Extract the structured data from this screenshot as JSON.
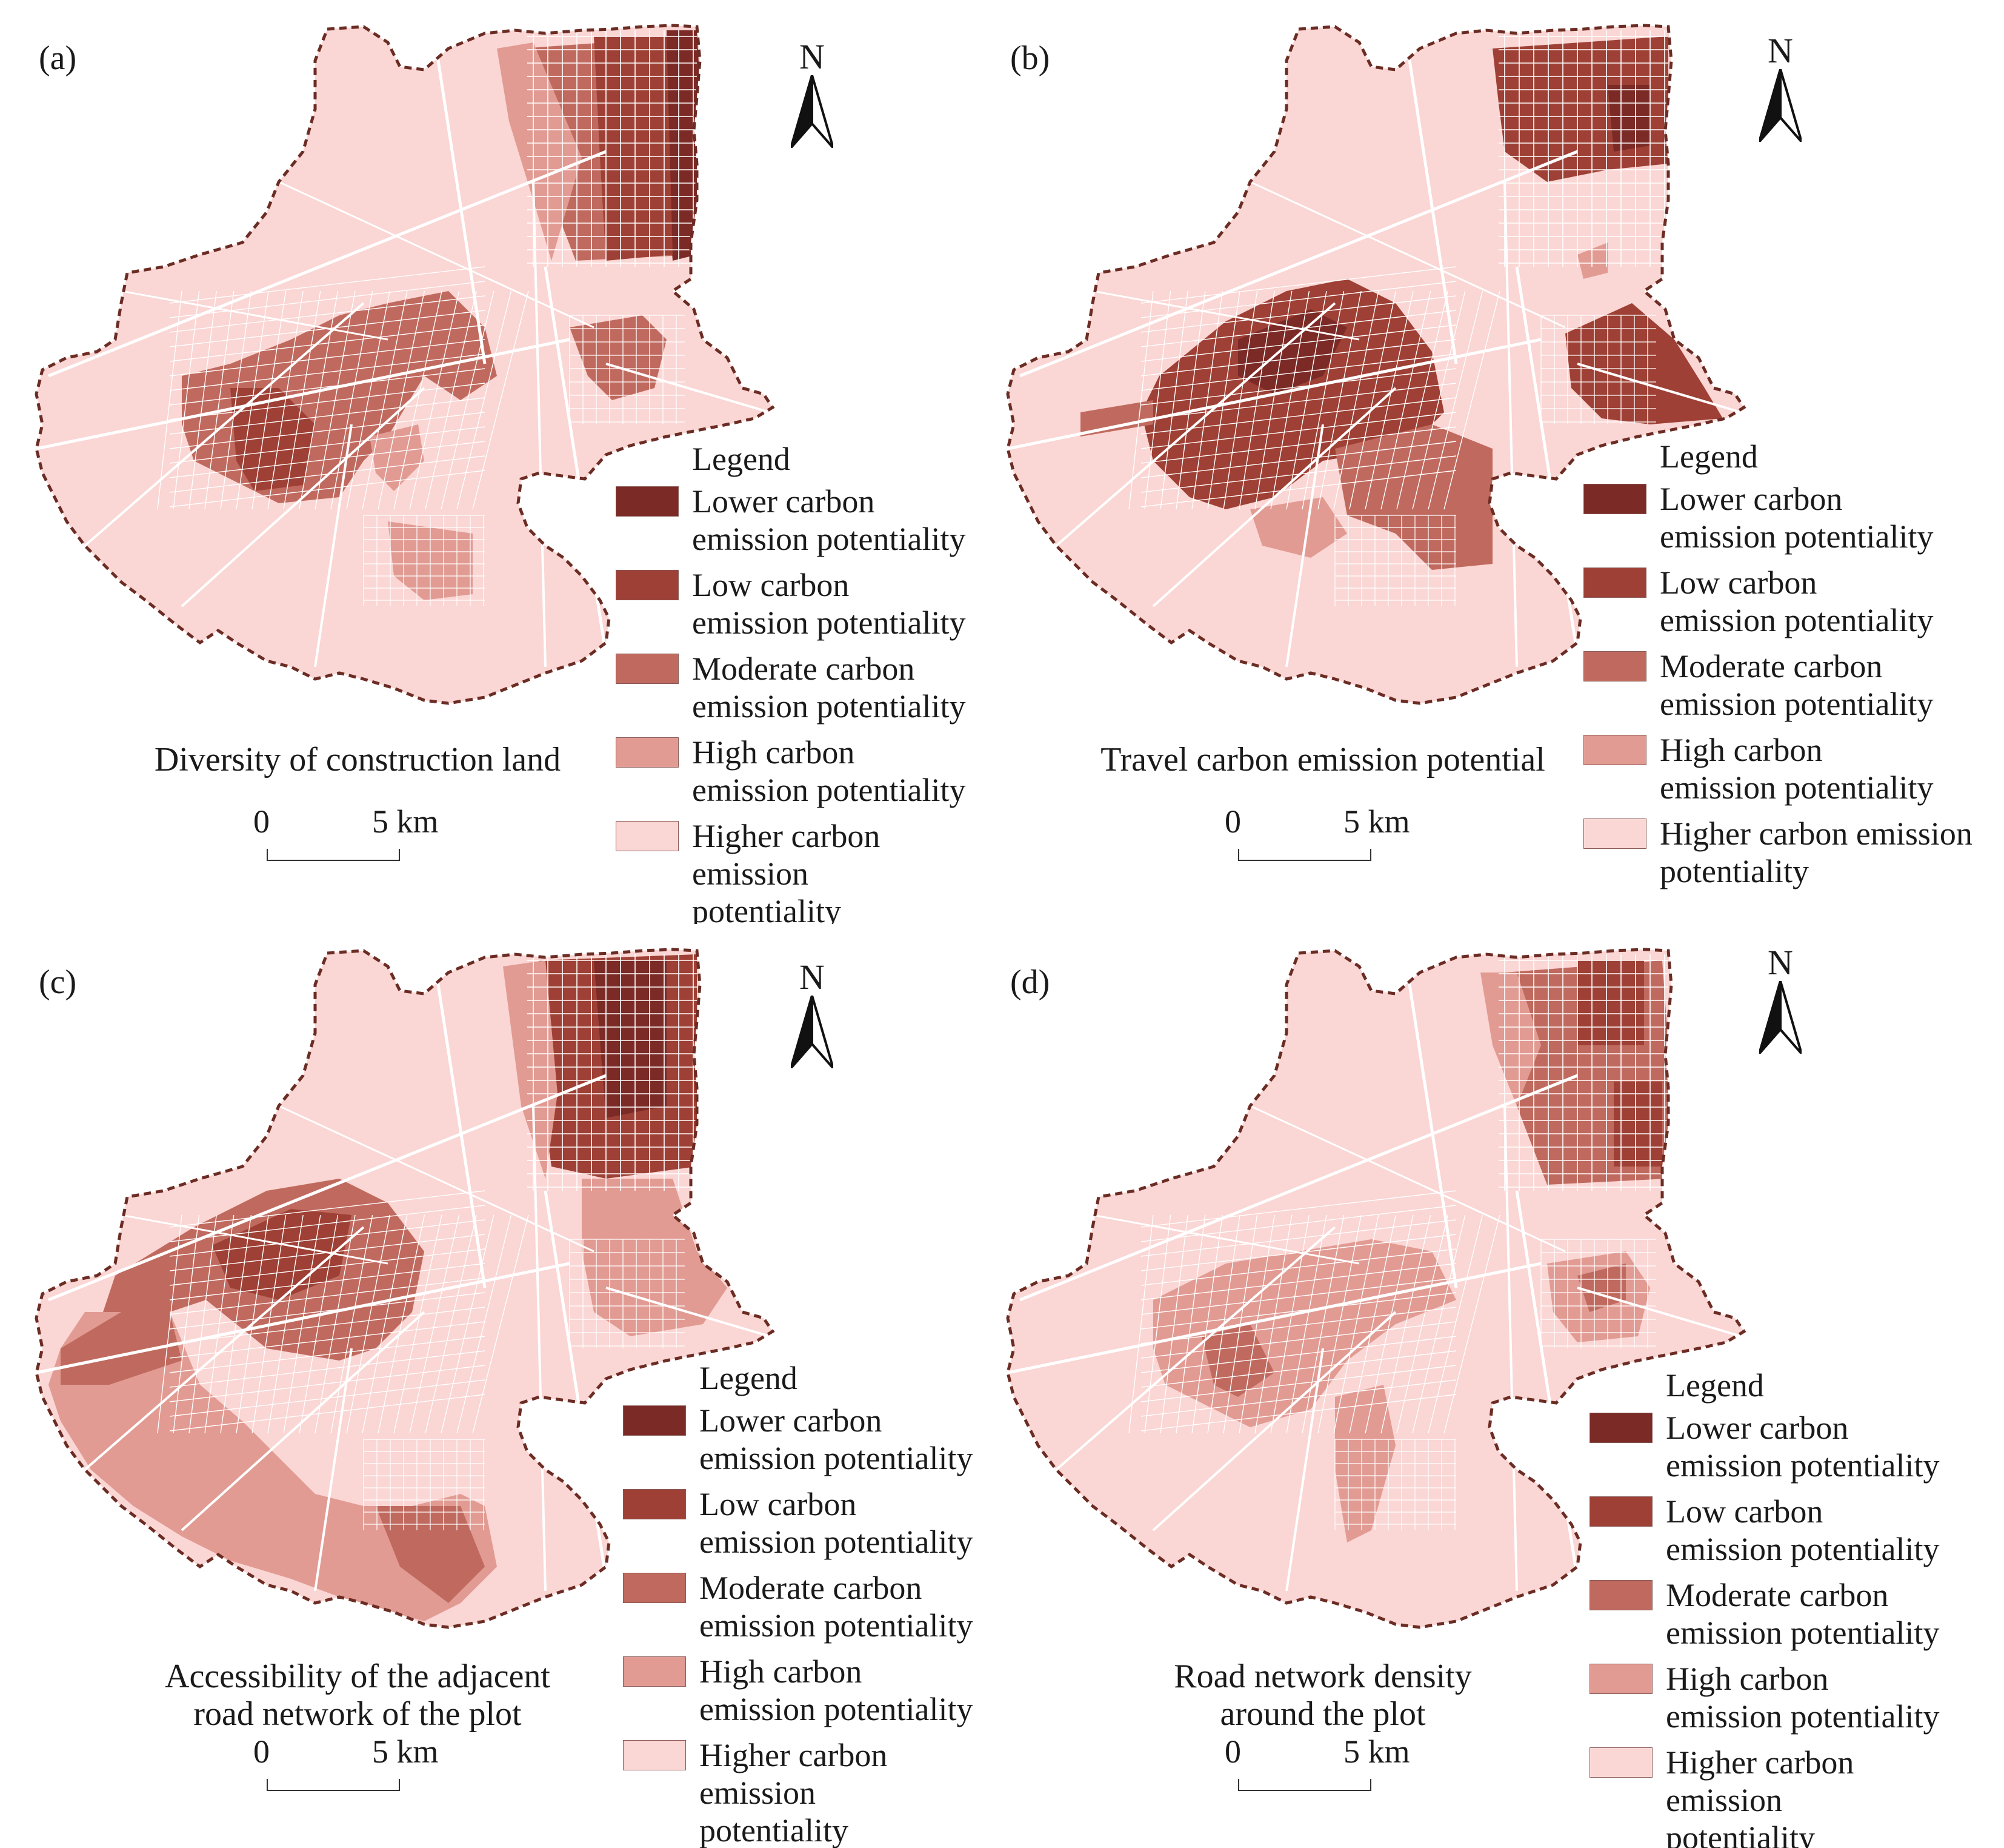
{
  "colors": {
    "lower": "#7b2a26",
    "low": "#9e4035",
    "moderate": "#c06a5f",
    "high": "#e19b93",
    "higher": "#fad6d4",
    "boundary": "#6b2c24",
    "road": "#ffffff"
  },
  "legend": {
    "title": "Legend",
    "items": [
      {
        "key": "lower",
        "label": "Lower carbon\nemission potentiality"
      },
      {
        "key": "low",
        "label": "Low carbon\nemission potentiality"
      },
      {
        "key": "moderate",
        "label": "Moderate carbon\nemission potentiality"
      },
      {
        "key": "high",
        "label": "High carbon\nemission potentiality"
      },
      {
        "key": "higher",
        "label": "Higher carbon emission\npotentiality"
      }
    ]
  },
  "north_arrow": {
    "letter": "N",
    "icon": "north-arrow-icon"
  },
  "scale_bar": {
    "start": "0",
    "end": "5 km"
  },
  "panels": [
    {
      "label": "(a)",
      "title": "Diversity of construction land"
    },
    {
      "label": "(b)",
      "title": "Travel carbon emission potential"
    },
    {
      "label": "(c)",
      "title": "Accessibility of the adjacent\nroad network of the plot"
    },
    {
      "label": "(d)",
      "title": "Road network density\naround the plot"
    }
  ]
}
